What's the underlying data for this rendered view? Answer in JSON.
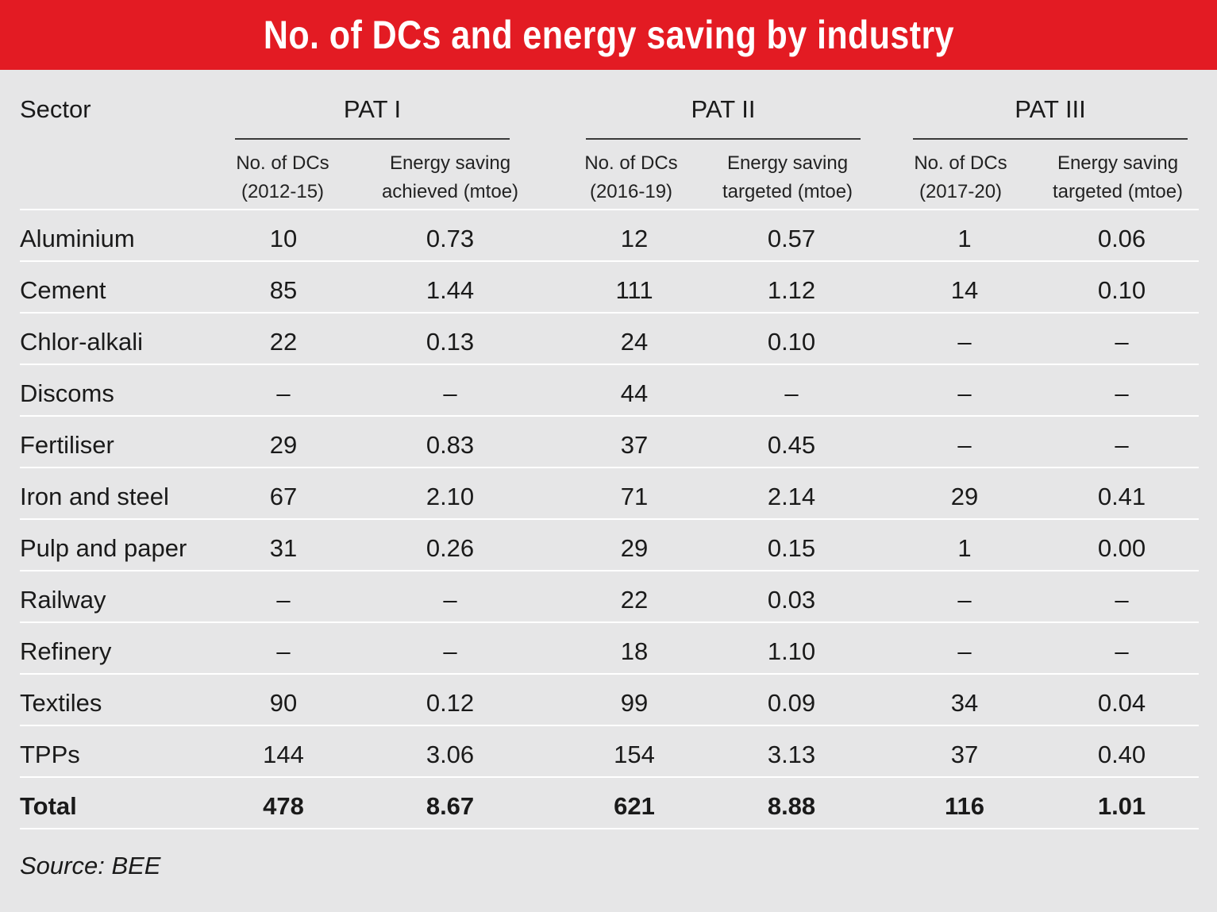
{
  "title": "No. of DCs and energy saving by industry",
  "colors": {
    "title_bg": "#e31b23",
    "title_text": "#ffffff",
    "background": "#e6e6e7"
  },
  "header": {
    "sector": "Sector",
    "groups": [
      {
        "label": "PAT I",
        "col1": {
          "line1": "No. of DCs",
          "line2": "(2012-15)"
        },
        "col2": {
          "line1": "Energy saving",
          "line2": "achieved (mtoe)"
        }
      },
      {
        "label": "PAT II",
        "col1": {
          "line1": "No. of DCs",
          "line2": "(2016-19)"
        },
        "col2": {
          "line1": "Energy saving",
          "line2": "targeted (mtoe)"
        }
      },
      {
        "label": "PAT III",
        "col1": {
          "line1": "No. of DCs",
          "line2": "(2017-20)"
        },
        "col2": {
          "line1": "Energy saving",
          "line2": "targeted (mtoe)"
        }
      }
    ]
  },
  "rows": [
    {
      "sector": "Aluminium",
      "v": [
        "10",
        "0.73",
        "12",
        "0.57",
        "1",
        "0.06"
      ]
    },
    {
      "sector": "Cement",
      "v": [
        "85",
        "1.44",
        "111",
        "1.12",
        "14",
        "0.10"
      ]
    },
    {
      "sector": "Chlor-alkali",
      "v": [
        "22",
        "0.13",
        "24",
        "0.10",
        "–",
        "–"
      ]
    },
    {
      "sector": "Discoms",
      "v": [
        "–",
        "–",
        "44",
        "–",
        "–",
        "–"
      ]
    },
    {
      "sector": "Fertiliser",
      "v": [
        "29",
        "0.83",
        "37",
        "0.45",
        "–",
        "–"
      ]
    },
    {
      "sector": "Iron and steel",
      "v": [
        "67",
        "2.10",
        "71",
        "2.14",
        "29",
        "0.41"
      ]
    },
    {
      "sector": "Pulp and paper",
      "v": [
        "31",
        "0.26",
        "29",
        "0.15",
        "1",
        "0.00"
      ]
    },
    {
      "sector": "Railway",
      "v": [
        "–",
        "–",
        "22",
        "0.03",
        "–",
        "–"
      ]
    },
    {
      "sector": "Refinery",
      "v": [
        "–",
        "–",
        "18",
        "1.10",
        "–",
        "–"
      ]
    },
    {
      "sector": "Textiles",
      "v": [
        "90",
        "0.12",
        "99",
        "0.09",
        "34",
        "0.04"
      ]
    },
    {
      "sector": "TPPs",
      "v": [
        "144",
        "3.06",
        "154",
        "3.13",
        "37",
        "0.40"
      ]
    }
  ],
  "total": {
    "sector": "Total",
    "v": [
      "478",
      "8.67",
      "621",
      "8.88",
      "116",
      "1.01"
    ]
  },
  "source": "Source: BEE"
}
